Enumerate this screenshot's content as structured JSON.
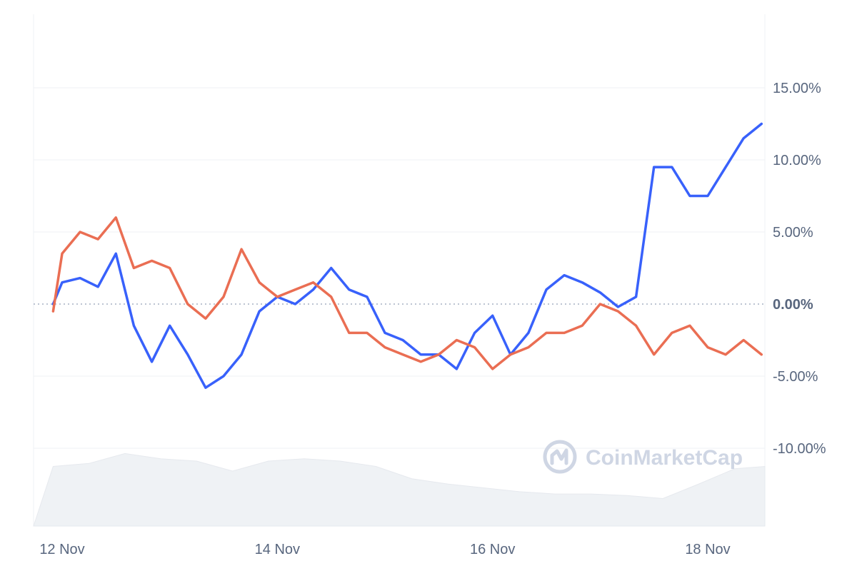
{
  "chart_data": {
    "type": "line",
    "xlabel": "",
    "ylabel": "",
    "x_ticks": [
      "12 Nov",
      "14 Nov",
      "16 Nov",
      "18 Nov"
    ],
    "y_ticks": [
      "15.00%",
      "10.00%",
      "5.00%",
      "0.00%",
      "-5.00%",
      "-10.00%"
    ],
    "ylim": [
      -15,
      20
    ],
    "grid": true,
    "legend": "none",
    "series": [
      {
        "color": "#3861fb",
        "x": [
          "11 Nov 22:00",
          "12 Nov 00:00",
          "12 Nov 04:00",
          "12 Nov 08:00",
          "12 Nov 12:00",
          "12 Nov 16:00",
          "12 Nov 20:00",
          "13 Nov 00:00",
          "13 Nov 04:00",
          "13 Nov 08:00",
          "13 Nov 12:00",
          "13 Nov 16:00",
          "13 Nov 20:00",
          "14 Nov 00:00",
          "14 Nov 04:00",
          "14 Nov 08:00",
          "14 Nov 12:00",
          "14 Nov 16:00",
          "14 Nov 20:00",
          "15 Nov 00:00",
          "15 Nov 04:00",
          "15 Nov 08:00",
          "15 Nov 12:00",
          "15 Nov 16:00",
          "15 Nov 20:00",
          "16 Nov 00:00",
          "16 Nov 04:00",
          "16 Nov 08:00",
          "16 Nov 12:00",
          "16 Nov 16:00",
          "16 Nov 20:00",
          "17 Nov 00:00",
          "17 Nov 04:00",
          "17 Nov 08:00",
          "17 Nov 12:00",
          "17 Nov 16:00",
          "17 Nov 20:00",
          "18 Nov 00:00",
          "18 Nov 04:00",
          "18 Nov 08:00",
          "18 Nov 12:00"
        ],
        "values": [
          0.0,
          1.5,
          1.8,
          1.2,
          3.5,
          -1.5,
          -4.0,
          -1.5,
          -3.5,
          -5.8,
          -5.0,
          -3.5,
          -0.5,
          0.5,
          0.0,
          1.0,
          2.5,
          1.0,
          0.5,
          -2.0,
          -2.5,
          -3.5,
          -3.5,
          -4.5,
          -2.0,
          -0.8,
          -3.5,
          -2.0,
          1.0,
          2.0,
          1.5,
          0.8,
          -0.2,
          0.5,
          9.5,
          9.5,
          7.5,
          7.5,
          9.5,
          11.5,
          12.5
        ]
      },
      {
        "color": "#ea6e53",
        "x": [
          "11 Nov 22:00",
          "12 Nov 00:00",
          "12 Nov 04:00",
          "12 Nov 08:00",
          "12 Nov 12:00",
          "12 Nov 16:00",
          "12 Nov 20:00",
          "13 Nov 00:00",
          "13 Nov 04:00",
          "13 Nov 08:00",
          "13 Nov 12:00",
          "13 Nov 16:00",
          "13 Nov 20:00",
          "14 Nov 00:00",
          "14 Nov 04:00",
          "14 Nov 08:00",
          "14 Nov 12:00",
          "14 Nov 16:00",
          "14 Nov 20:00",
          "15 Nov 00:00",
          "15 Nov 04:00",
          "15 Nov 08:00",
          "15 Nov 12:00",
          "15 Nov 16:00",
          "15 Nov 20:00",
          "16 Nov 00:00",
          "16 Nov 04:00",
          "16 Nov 08:00",
          "16 Nov 12:00",
          "16 Nov 16:00",
          "16 Nov 20:00",
          "17 Nov 00:00",
          "17 Nov 04:00",
          "17 Nov 08:00",
          "17 Nov 12:00",
          "17 Nov 16:00",
          "17 Nov 20:00",
          "18 Nov 00:00",
          "18 Nov 04:00",
          "18 Nov 08:00",
          "18 Nov 12:00"
        ],
        "values": [
          -0.5,
          3.5,
          5.0,
          4.5,
          6.0,
          2.5,
          3.0,
          2.5,
          0.0,
          -1.0,
          0.5,
          3.8,
          1.5,
          0.5,
          1.0,
          1.5,
          0.5,
          -2.0,
          -2.0,
          -3.0,
          -3.5,
          -4.0,
          -3.5,
          -2.5,
          -3.0,
          -4.5,
          -3.5,
          -3.0,
          -2.0,
          -2.0,
          -1.5,
          0.0,
          -0.5,
          -1.5,
          -3.5,
          -2.0,
          -1.5,
          -3.0,
          -3.5,
          -2.5,
          -3.5
        ]
      }
    ],
    "volume": {
      "color": "#eff2f5",
      "x": [
        "11 Nov 22:00",
        "12 Nov 06:00",
        "12 Nov 14:00",
        "12 Nov 22:00",
        "13 Nov 06:00",
        "13 Nov 14:00",
        "13 Nov 22:00",
        "14 Nov 06:00",
        "14 Nov 14:00",
        "14 Nov 22:00",
        "15 Nov 06:00",
        "15 Nov 14:00",
        "15 Nov 22:00",
        "16 Nov 06:00",
        "16 Nov 14:00",
        "16 Nov 22:00",
        "17 Nov 06:00",
        "17 Nov 14:00",
        "17 Nov 22:00",
        "18 Nov 06:00",
        "18 Nov 14:00",
        "18 Nov 18:00"
      ],
      "values": [
        0.78,
        0.82,
        0.95,
        0.88,
        0.85,
        0.72,
        0.85,
        0.88,
        0.85,
        0.78,
        0.62,
        0.55,
        0.5,
        0.45,
        0.42,
        0.42,
        0.4,
        0.36,
        0.55,
        0.75,
        0.78,
        0.6
      ]
    },
    "watermark": "CoinMarketCap"
  }
}
